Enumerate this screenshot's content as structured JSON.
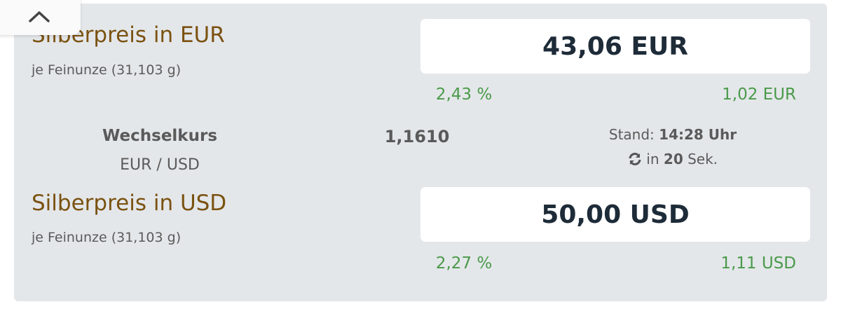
{
  "collapse_icon": "chevron-up-icon",
  "eur": {
    "title": "Silberpreis in EUR",
    "subtitle": "je Feinunze (31,103 g)",
    "price": "43,06 EUR",
    "change_percent": "2,43 %",
    "change_abs": "1,02 EUR"
  },
  "rate": {
    "label": "Wechselkurs",
    "pair": "EUR / USD",
    "value": "1,1610",
    "stand_label": "Stand:",
    "time": "14:28 Uhr",
    "refresh_icon": "refresh-icon",
    "refresh_prefix": "in",
    "refresh_seconds": "20",
    "refresh_suffix": "Sek."
  },
  "usd": {
    "title": "Silberpreis in USD",
    "subtitle": "je Feinunze (31,103 g)",
    "price": "50,00 USD",
    "change_percent": "2,27 %",
    "change_abs": "1,11 USD"
  },
  "colors": {
    "title": "#7a5210",
    "positive": "#4a9a4a",
    "price": "#1e2b38",
    "panel": "#e4e7ea"
  }
}
